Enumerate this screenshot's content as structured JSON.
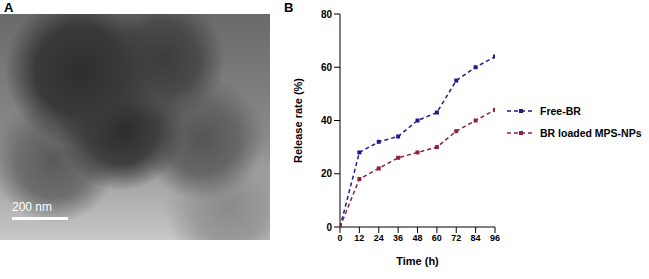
{
  "panels": [
    {
      "label": "A",
      "scale_bar": "200 nm"
    },
    {
      "label": "B"
    }
  ],
  "chart_data": {
    "type": "line",
    "x_label": "Time (h)",
    "y_label": "Release rate  (%)",
    "x": [
      0,
      12,
      24,
      36,
      48,
      60,
      72,
      84,
      96
    ],
    "xlim": [
      0,
      96
    ],
    "xticks": [
      0,
      12,
      24,
      36,
      48,
      60,
      72,
      84,
      96
    ],
    "ylim": [
      0,
      80
    ],
    "yticks": [
      0,
      20,
      40,
      60,
      80
    ],
    "grid": false,
    "legend": "right",
    "series": [
      {
        "name": "Free-BR",
        "color": "#1c1c8f",
        "marker": "square",
        "line_style": "dashed",
        "values": [
          0,
          28,
          32,
          34,
          40,
          43,
          55,
          60,
          64
        ]
      },
      {
        "name": "BR loaded MPS-NPs",
        "color": "#8e1f45",
        "marker": "square",
        "line_style": "dashed",
        "values": [
          0,
          18,
          22,
          26,
          28,
          30,
          36,
          40,
          44
        ]
      }
    ]
  }
}
